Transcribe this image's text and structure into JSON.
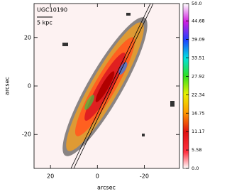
{
  "chart_data": {
    "type": "map",
    "title": "UGC10190",
    "annotations": [
      "5 kpc"
    ],
    "xlabel": "arcsec",
    "ylabel": "arcsec",
    "xlim": [
      27,
      -35
    ],
    "ylim": [
      -34,
      34
    ],
    "xticks": [
      20,
      0,
      -20
    ],
    "yticks": [
      -20,
      0,
      20
    ],
    "colorbar": {
      "lim": [
        0,
        50
      ],
      "ticks": [
        {
          "value": 0,
          "label": "0.0"
        },
        5.58,
        11.17,
        16.75,
        22.34,
        27.92,
        33.51,
        39.09,
        44.68,
        {
          "value": 50,
          "label": "50.0"
        }
      ]
    }
  }
}
